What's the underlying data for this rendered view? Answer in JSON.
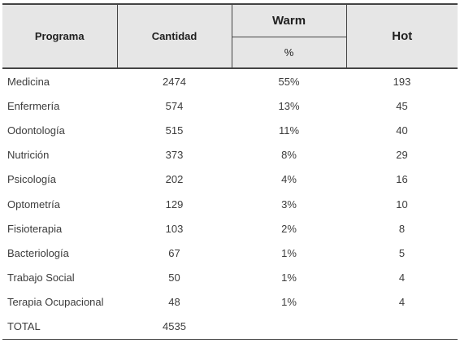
{
  "headers": {
    "programa": "Programa",
    "cantidad": "Cantidad",
    "warm": "Warm",
    "warm_sub": "%",
    "hot": "Hot"
  },
  "rows": [
    {
      "programa": "Medicina",
      "cantidad": "2474",
      "warm": "55%",
      "hot": "193"
    },
    {
      "programa": "Enfermería",
      "cantidad": "574",
      "warm": "13%",
      "hot": "45"
    },
    {
      "programa": "Odontología",
      "cantidad": "515",
      "warm": "11%",
      "hot": "40"
    },
    {
      "programa": "Nutrición",
      "cantidad": "373",
      "warm": "8%",
      "hot": "29"
    },
    {
      "programa": "Psicología",
      "cantidad": "202",
      "warm": "4%",
      "hot": "16"
    },
    {
      "programa": "Optometría",
      "cantidad": "129",
      "warm": "3%",
      "hot": "10"
    },
    {
      "programa": "Fisioterapia",
      "cantidad": "103",
      "warm": "2%",
      "hot": "8"
    },
    {
      "programa": "Bacteriología",
      "cantidad": "67",
      "warm": "1%",
      "hot": "5"
    },
    {
      "programa": "Trabajo Social",
      "cantidad": "50",
      "warm": "1%",
      "hot": "4"
    },
    {
      "programa": "Terapia Ocupacional",
      "cantidad": "48",
      "warm": "1%",
      "hot": "4"
    }
  ],
  "total": {
    "label": "TOTAL",
    "cantidad": "4535"
  }
}
